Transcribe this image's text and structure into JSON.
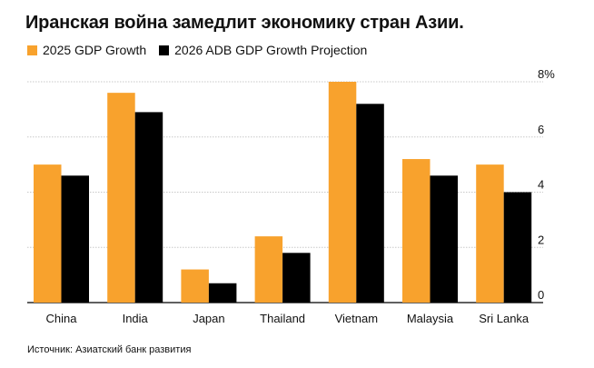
{
  "header": {
    "title": "Иранская война замедлит экономику стран Азии."
  },
  "footer": {
    "source": "Источник: Азиатский банк развития"
  },
  "chart_data": {
    "type": "bar",
    "categories": [
      "China",
      "India",
      "Japan",
      "Thailand",
      "Vietnam",
      "Malaysia",
      "Sri Lanka"
    ],
    "series": [
      {
        "name": "2025 GDP Growth",
        "color": "#F8A22D",
        "values": [
          5.0,
          7.6,
          1.2,
          2.4,
          8.0,
          5.2,
          5.0
        ]
      },
      {
        "name": "2026 ADB GDP Growth Projection",
        "color": "#000000",
        "values": [
          4.6,
          6.9,
          0.7,
          1.8,
          7.2,
          4.6,
          4.0
        ]
      }
    ],
    "yticks": [
      "0",
      "2",
      "4",
      "6",
      "8%"
    ],
    "ytick_values": [
      0,
      2,
      4,
      6,
      8
    ],
    "ylim": [
      0,
      8
    ],
    "grid": true,
    "legend_position": "top-left",
    "y_axis_position": "right"
  }
}
